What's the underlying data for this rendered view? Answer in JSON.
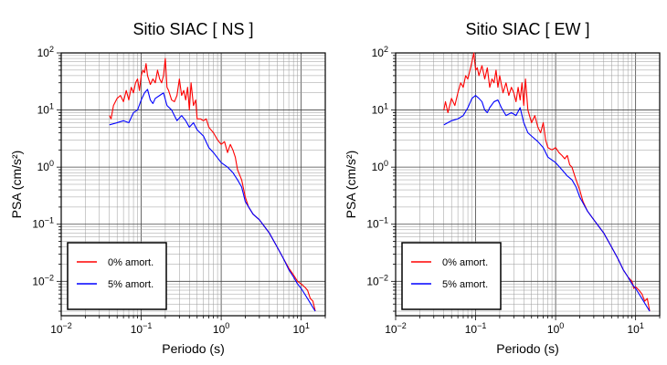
{
  "chart_data": [
    {
      "type": "line",
      "title": "Sitio SIAC [ NS ]",
      "xlabel": "Periodo (s)",
      "ylabel": "PSA (cm/s²)",
      "xscale": "log",
      "yscale": "log",
      "xlim": [
        0.01,
        20
      ],
      "ylim": [
        0.0025,
        100
      ],
      "xticks": [
        {
          "base": "10",
          "exp": "−2"
        },
        {
          "base": "10",
          "exp": "−1"
        },
        {
          "base": "10",
          "exp": "0"
        },
        {
          "base": "10",
          "exp": "1"
        }
      ],
      "yticks": [
        {
          "base": "10",
          "exp": "−2"
        },
        {
          "base": "10",
          "exp": "−1"
        },
        {
          "base": "10",
          "exp": "0"
        },
        {
          "base": "10",
          "exp": "1"
        },
        {
          "base": "10",
          "exp": "2"
        }
      ],
      "grid": true,
      "legend_position": "bottom-left",
      "series": [
        {
          "name": "0% amort.",
          "color": "#ff0000",
          "points": [
            [
              0.04,
              8
            ],
            [
              0.042,
              7
            ],
            [
              0.045,
              12
            ],
            [
              0.05,
              16
            ],
            [
              0.055,
              18
            ],
            [
              0.06,
              14
            ],
            [
              0.065,
              22
            ],
            [
              0.07,
              15
            ],
            [
              0.075,
              25
            ],
            [
              0.08,
              20
            ],
            [
              0.085,
              30
            ],
            [
              0.09,
              35
            ],
            [
              0.095,
              22
            ],
            [
              0.1,
              40
            ],
            [
              0.105,
              50
            ],
            [
              0.11,
              45
            ],
            [
              0.115,
              65
            ],
            [
              0.12,
              40
            ],
            [
              0.13,
              28
            ],
            [
              0.14,
              35
            ],
            [
              0.15,
              30
            ],
            [
              0.16,
              50
            ],
            [
              0.17,
              35
            ],
            [
              0.18,
              30
            ],
            [
              0.19,
              40
            ],
            [
              0.2,
              80
            ],
            [
              0.21,
              25
            ],
            [
              0.22,
              22
            ],
            [
              0.24,
              15
            ],
            [
              0.26,
              14
            ],
            [
              0.28,
              18
            ],
            [
              0.3,
              35
            ],
            [
              0.32,
              18
            ],
            [
              0.34,
              22
            ],
            [
              0.36,
              15
            ],
            [
              0.38,
              25
            ],
            [
              0.4,
              10
            ],
            [
              0.42,
              30
            ],
            [
              0.45,
              12
            ],
            [
              0.48,
              15
            ],
            [
              0.5,
              7
            ],
            [
              0.55,
              7
            ],
            [
              0.6,
              6.5
            ],
            [
              0.65,
              7
            ],
            [
              0.7,
              5
            ],
            [
              0.8,
              4
            ],
            [
              0.9,
              3
            ],
            [
              1.0,
              2.5
            ],
            [
              1.1,
              2.8
            ],
            [
              1.2,
              1.8
            ],
            [
              1.3,
              2.5
            ],
            [
              1.4,
              2
            ],
            [
              1.5,
              1.5
            ],
            [
              1.6,
              0.9
            ],
            [
              1.8,
              0.6
            ],
            [
              2.0,
              0.3
            ],
            [
              2.2,
              0.2
            ],
            [
              2.5,
              0.15
            ],
            [
              3.0,
              0.12
            ],
            [
              3.5,
              0.09
            ],
            [
              4.0,
              0.07
            ],
            [
              5.0,
              0.04
            ],
            [
              6.0,
              0.025
            ],
            [
              7.0,
              0.017
            ],
            [
              8.0,
              0.013
            ],
            [
              9.0,
              0.01
            ],
            [
              10.0,
              0.009
            ],
            [
              11.0,
              0.008
            ],
            [
              12.0,
              0.007
            ],
            [
              13.0,
              0.005
            ],
            [
              14.0,
              0.0045
            ],
            [
              15.0,
              0.003
            ]
          ]
        },
        {
          "name": "5% amort.",
          "color": "#0000ff",
          "points": [
            [
              0.04,
              5.5
            ],
            [
              0.05,
              6
            ],
            [
              0.06,
              6.5
            ],
            [
              0.07,
              6
            ],
            [
              0.08,
              9
            ],
            [
              0.09,
              10
            ],
            [
              0.1,
              15
            ],
            [
              0.11,
              20
            ],
            [
              0.12,
              23
            ],
            [
              0.13,
              15
            ],
            [
              0.14,
              13
            ],
            [
              0.15,
              16
            ],
            [
              0.17,
              18
            ],
            [
              0.19,
              20
            ],
            [
              0.21,
              12
            ],
            [
              0.24,
              10
            ],
            [
              0.28,
              6.5
            ],
            [
              0.32,
              8
            ],
            [
              0.36,
              6.5
            ],
            [
              0.4,
              5
            ],
            [
              0.45,
              6
            ],
            [
              0.5,
              4.5
            ],
            [
              0.6,
              3.5
            ],
            [
              0.7,
              2.2
            ],
            [
              0.8,
              1.8
            ],
            [
              1.0,
              1.2
            ],
            [
              1.2,
              1.0
            ],
            [
              1.4,
              0.8
            ],
            [
              1.6,
              0.6
            ],
            [
              1.8,
              0.45
            ],
            [
              2.0,
              0.25
            ],
            [
              2.5,
              0.15
            ],
            [
              3.0,
              0.12
            ],
            [
              3.5,
              0.09
            ],
            [
              4.0,
              0.07
            ],
            [
              5.0,
              0.04
            ],
            [
              6.0,
              0.025
            ],
            [
              7.0,
              0.016
            ],
            [
              8.0,
              0.012
            ],
            [
              9.0,
              0.009
            ],
            [
              10.0,
              0.0075
            ],
            [
              12.0,
              0.005
            ],
            [
              14.0,
              0.0035
            ],
            [
              15.0,
              0.003
            ]
          ]
        }
      ]
    },
    {
      "type": "line",
      "title": "Sitio SIAC [ EW ]",
      "xlabel": "Periodo (s)",
      "ylabel": "PSA (cm/s²)",
      "xscale": "log",
      "yscale": "log",
      "xlim": [
        0.01,
        20
      ],
      "ylim": [
        0.0025,
        100
      ],
      "xticks": [
        {
          "base": "10",
          "exp": "−2"
        },
        {
          "base": "10",
          "exp": "−1"
        },
        {
          "base": "10",
          "exp": "0"
        },
        {
          "base": "10",
          "exp": "1"
        }
      ],
      "yticks": [
        {
          "base": "10",
          "exp": "−2"
        },
        {
          "base": "10",
          "exp": "−1"
        },
        {
          "base": "10",
          "exp": "0"
        },
        {
          "base": "10",
          "exp": "1"
        },
        {
          "base": "10",
          "exp": "2"
        }
      ],
      "grid": true,
      "legend_position": "bottom-left",
      "series": [
        {
          "name": "0% amort.",
          "color": "#ff0000",
          "points": [
            [
              0.04,
              10
            ],
            [
              0.042,
              14
            ],
            [
              0.045,
              9
            ],
            [
              0.05,
              16
            ],
            [
              0.055,
              12
            ],
            [
              0.06,
              20
            ],
            [
              0.065,
              30
            ],
            [
              0.07,
              25
            ],
            [
              0.075,
              40
            ],
            [
              0.08,
              35
            ],
            [
              0.085,
              50
            ],
            [
              0.09,
              70
            ],
            [
              0.095,
              100
            ],
            [
              0.1,
              50
            ],
            [
              0.105,
              55
            ],
            [
              0.11,
              40
            ],
            [
              0.12,
              60
            ],
            [
              0.13,
              35
            ],
            [
              0.14,
              55
            ],
            [
              0.15,
              25
            ],
            [
              0.16,
              35
            ],
            [
              0.17,
              30
            ],
            [
              0.18,
              50
            ],
            [
              0.19,
              25
            ],
            [
              0.2,
              40
            ],
            [
              0.22,
              20
            ],
            [
              0.24,
              30
            ],
            [
              0.26,
              18
            ],
            [
              0.28,
              25
            ],
            [
              0.3,
              20
            ],
            [
              0.32,
              14
            ],
            [
              0.34,
              25
            ],
            [
              0.36,
              15
            ],
            [
              0.38,
              30
            ],
            [
              0.4,
              12
            ],
            [
              0.42,
              35
            ],
            [
              0.45,
              10
            ],
            [
              0.5,
              6
            ],
            [
              0.55,
              8
            ],
            [
              0.6,
              5
            ],
            [
              0.65,
              4
            ],
            [
              0.7,
              6
            ],
            [
              0.75,
              3
            ],
            [
              0.8,
              2.2
            ],
            [
              0.9,
              2
            ],
            [
              1.0,
              2.2
            ],
            [
              1.1,
              1.8
            ],
            [
              1.2,
              1.6
            ],
            [
              1.3,
              1.4
            ],
            [
              1.4,
              1.6
            ],
            [
              1.5,
              1.1
            ],
            [
              1.6,
              1.0
            ],
            [
              1.8,
              0.6
            ],
            [
              2.0,
              0.4
            ],
            [
              2.2,
              0.25
            ],
            [
              2.5,
              0.17
            ],
            [
              3.0,
              0.12
            ],
            [
              3.5,
              0.09
            ],
            [
              4.0,
              0.07
            ],
            [
              5.0,
              0.04
            ],
            [
              6.0,
              0.025
            ],
            [
              7.0,
              0.016
            ],
            [
              8.0,
              0.012
            ],
            [
              9.0,
              0.01
            ],
            [
              9.5,
              0.0075
            ],
            [
              10.0,
              0.008
            ],
            [
              11.0,
              0.007
            ],
            [
              12.0,
              0.006
            ],
            [
              13.0,
              0.0045
            ],
            [
              14.0,
              0.005
            ],
            [
              15.0,
              0.003
            ]
          ]
        },
        {
          "name": "5% amort.",
          "color": "#0000ff",
          "points": [
            [
              0.04,
              5.5
            ],
            [
              0.05,
              6.5
            ],
            [
              0.06,
              7
            ],
            [
              0.07,
              8
            ],
            [
              0.08,
              11
            ],
            [
              0.09,
              16
            ],
            [
              0.1,
              18
            ],
            [
              0.11,
              16
            ],
            [
              0.12,
              14
            ],
            [
              0.13,
              10
            ],
            [
              0.14,
              9
            ],
            [
              0.15,
              11
            ],
            [
              0.17,
              14
            ],
            [
              0.19,
              15
            ],
            [
              0.21,
              11
            ],
            [
              0.24,
              8
            ],
            [
              0.28,
              9
            ],
            [
              0.32,
              8
            ],
            [
              0.36,
              11
            ],
            [
              0.4,
              6
            ],
            [
              0.45,
              4
            ],
            [
              0.5,
              3.5
            ],
            [
              0.6,
              2.8
            ],
            [
              0.7,
              2.2
            ],
            [
              0.8,
              1.5
            ],
            [
              1.0,
              1.2
            ],
            [
              1.2,
              0.9
            ],
            [
              1.4,
              0.7
            ],
            [
              1.6,
              0.6
            ],
            [
              1.8,
              0.45
            ],
            [
              2.0,
              0.3
            ],
            [
              2.5,
              0.17
            ],
            [
              3.0,
              0.12
            ],
            [
              3.5,
              0.09
            ],
            [
              4.0,
              0.07
            ],
            [
              5.0,
              0.04
            ],
            [
              6.0,
              0.025
            ],
            [
              7.0,
              0.016
            ],
            [
              8.0,
              0.012
            ],
            [
              9.0,
              0.009
            ],
            [
              10.0,
              0.0075
            ],
            [
              12.0,
              0.005
            ],
            [
              14.0,
              0.0035
            ],
            [
              15.0,
              0.003
            ]
          ]
        }
      ]
    }
  ]
}
